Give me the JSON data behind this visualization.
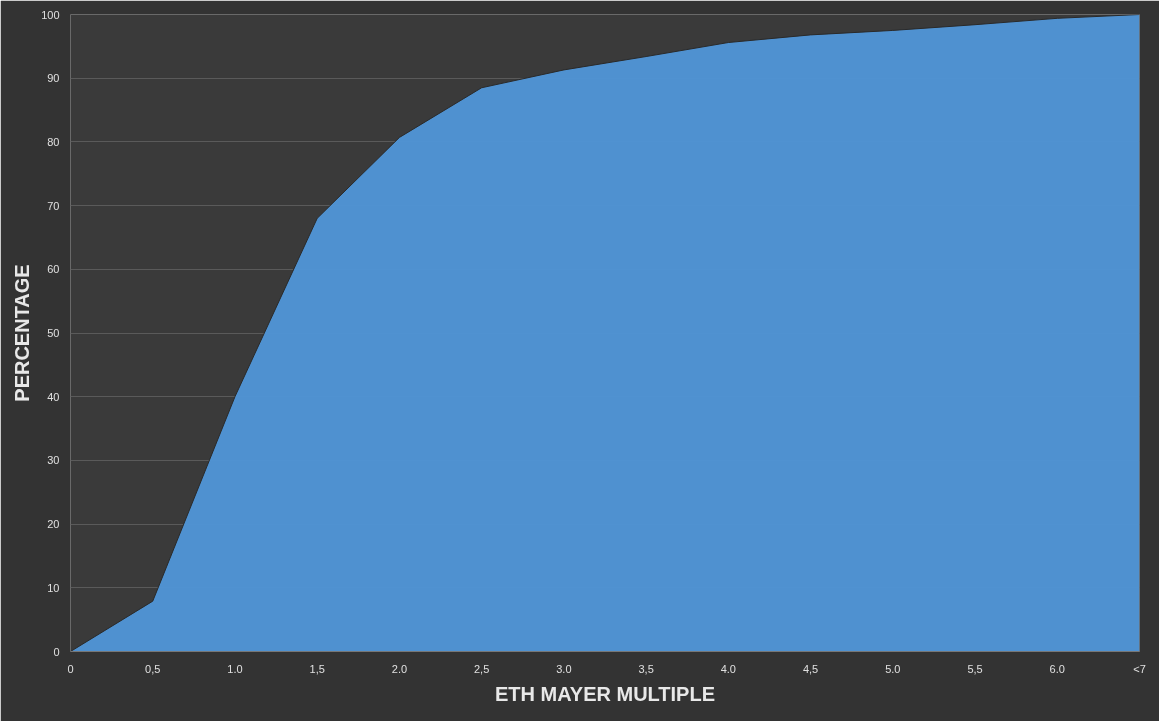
{
  "chart_data": {
    "type": "area",
    "xlabel": "ETH MAYER MULTIPLE",
    "ylabel": "PERCENTAGE",
    "categories": [
      "0",
      "0,5",
      "1.0",
      "1,5",
      "2.0",
      "2,5",
      "3.0",
      "3,5",
      "4.0",
      "4,5",
      "5.0",
      "5,5",
      "6.0",
      "<7"
    ],
    "series": [
      {
        "color": "#5096d8",
        "values": [
          0,
          7.9,
          40,
          68,
          80.7,
          88.5,
          91.3,
          93.4,
          95.6,
          96.8,
          97.5,
          98.4,
          99.4,
          100
        ]
      }
    ],
    "ylim": [
      0,
      100
    ],
    "yticks": [
      0,
      10,
      20,
      30,
      40,
      50,
      60,
      70,
      80,
      90,
      100
    ],
    "grid": "y"
  }
}
